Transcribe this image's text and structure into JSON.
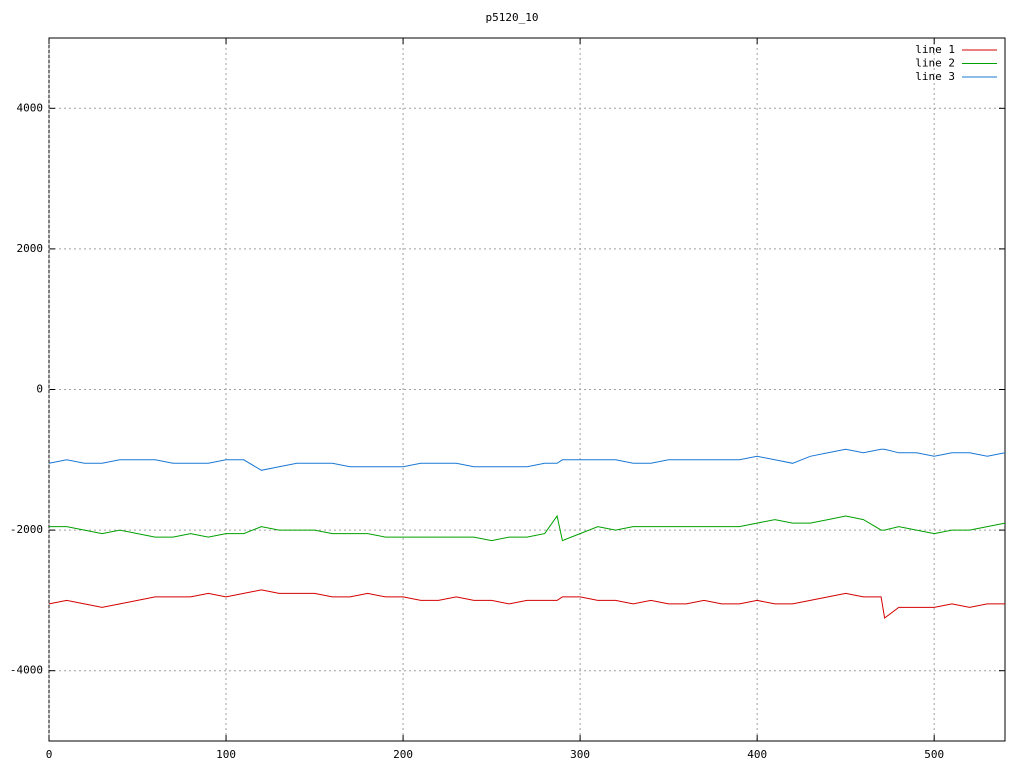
{
  "chart_data": {
    "type": "line",
    "title": "p5120_10",
    "x": [
      0,
      10,
      20,
      30,
      40,
      50,
      60,
      70,
      80,
      90,
      100,
      110,
      120,
      130,
      140,
      150,
      160,
      170,
      180,
      190,
      200,
      210,
      220,
      230,
      240,
      250,
      260,
      270,
      280,
      287,
      290,
      300,
      310,
      320,
      330,
      340,
      350,
      360,
      370,
      380,
      390,
      400,
      410,
      420,
      430,
      440,
      450,
      460,
      470,
      472,
      480,
      490,
      500,
      510,
      520,
      530,
      540
    ],
    "series": [
      {
        "name": "line 1",
        "color": "#d40000",
        "values": [
          -3050,
          -3000,
          -3050,
          -3100,
          -3050,
          -3000,
          -2950,
          -2950,
          -2950,
          -2900,
          -2950,
          -2900,
          -2850,
          -2900,
          -2900,
          -2900,
          -2950,
          -2950,
          -2900,
          -2950,
          -2950,
          -3000,
          -3000,
          -2950,
          -3000,
          -3000,
          -3050,
          -3000,
          -3000,
          -3000,
          -2950,
          -2950,
          -3000,
          -3000,
          -3050,
          -3000,
          -3050,
          -3050,
          -3000,
          -3050,
          -3050,
          -3000,
          -3050,
          -3050,
          -3000,
          -2950,
          -2900,
          -2950,
          -2950,
          -3250,
          -3100,
          -3100,
          -3100,
          -3050,
          -3100,
          -3050,
          -3050
        ]
      },
      {
        "name": "line 2",
        "color": "#00a000",
        "values": [
          -1950,
          -1950,
          -2000,
          -2050,
          -2000,
          -2050,
          -2100,
          -2100,
          -2050,
          -2100,
          -2050,
          -2050,
          -1950,
          -2000,
          -2000,
          -2000,
          -2050,
          -2050,
          -2050,
          -2100,
          -2100,
          -2100,
          -2100,
          -2100,
          -2100,
          -2150,
          -2100,
          -2100,
          -2050,
          -1800,
          -2150,
          -2050,
          -1950,
          -2000,
          -1950,
          -1950,
          -1950,
          -1950,
          -1950,
          -1950,
          -1950,
          -1900,
          -1850,
          -1900,
          -1900,
          -1850,
          -1800,
          -1850,
          -2000,
          -2000,
          -1950,
          -2000,
          -2050,
          -2000,
          -2000,
          -1950,
          -1900
        ]
      },
      {
        "name": "line 3",
        "color": "#1a78d4",
        "values": [
          -1050,
          -1000,
          -1050,
          -1050,
          -1000,
          -1000,
          -1000,
          -1050,
          -1050,
          -1050,
          -1000,
          -1000,
          -1150,
          -1100,
          -1050,
          -1050,
          -1050,
          -1100,
          -1100,
          -1100,
          -1100,
          -1050,
          -1050,
          -1050,
          -1100,
          -1100,
          -1100,
          -1100,
          -1050,
          -1050,
          -1000,
          -1000,
          -1000,
          -1000,
          -1050,
          -1050,
          -1000,
          -1000,
          -1000,
          -1000,
          -1000,
          -950,
          -1000,
          -1050,
          -950,
          -900,
          -850,
          -900,
          -850,
          -850,
          -900,
          -900,
          -950,
          -900,
          -900,
          -950,
          -900
        ]
      }
    ],
    "xlim": [
      0,
      540
    ],
    "xticks": [
      0,
      100,
      200,
      300,
      400,
      500
    ],
    "ylim": [
      -5000,
      5000
    ],
    "yticks": [
      -4000,
      -2000,
      0,
      2000,
      4000
    ],
    "grid": true,
    "legend": "top-right"
  }
}
